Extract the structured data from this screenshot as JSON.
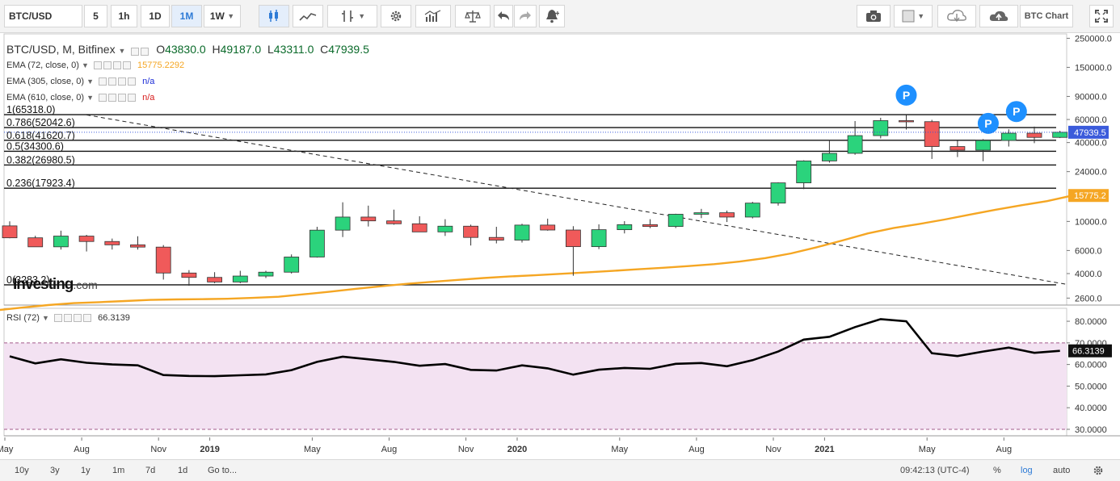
{
  "toolbar": {
    "symbol": "BTC/USD",
    "intervals": [
      "5",
      "1h",
      "1D",
      "1M",
      "1W"
    ],
    "active_interval": "1M",
    "right_label": "BTC Chart",
    "icons": [
      "candles-icon",
      "line-chart-icon",
      "bar-style-icon",
      "chevron-down-icon",
      "gear-icon",
      "indicators-icon",
      "scale-icon",
      "undo-icon",
      "redo-icon",
      "alert-icon",
      "camera-icon",
      "template-icon",
      "cloud-download-icon",
      "cloud-upload-icon",
      "fullscreen-icon"
    ]
  },
  "legend": {
    "title": "BTC/USD, M, Bitfinex",
    "open_label": "O",
    "open": "43830.0",
    "high_label": "H",
    "high": "49187.0",
    "low_label": "L",
    "low": "43311.0",
    "close_label": "C",
    "close": "47939.5",
    "ema72_label": "EMA (72, close, 0)",
    "ema72_value": "15775.2292",
    "ema72_color": "#f5a623",
    "ema305_label": "EMA (305, close, 0)",
    "ema305_value": "n/a",
    "ema305_color": "#1a2bd6",
    "ema610_label": "EMA (610, close, 0)",
    "ema610_value": "n/a",
    "ema610_color": "#d61a1a",
    "rsi_label": "RSI (72)",
    "rsi_value": "66.3139"
  },
  "logo": {
    "brand": "Investing",
    "suffix": ".com"
  },
  "bottom": {
    "ranges": [
      "10y",
      "3y",
      "1y",
      "1m",
      "7d",
      "1d"
    ],
    "goto": "Go to...",
    "time": "09:42:13 (UTC-4)",
    "pct": "%",
    "log": "log",
    "auto": "auto"
  },
  "chart_data": {
    "type": "candlestick",
    "scale": "log",
    "ylim": [
      2300,
      270000
    ],
    "price_ticks": [
      250000,
      150000,
      90000,
      60000,
      40000,
      24000,
      10000,
      6000,
      4000,
      2600
    ],
    "price_tick_labels": [
      "250000.0",
      "150000.0",
      "90000.0",
      "60000.0",
      "40000.0",
      "24000.0",
      "10000.0",
      "6000.0",
      "4000.0",
      "2600.0"
    ],
    "x_labels": [
      "May",
      "Aug",
      "Nov",
      "2019",
      "May",
      "Aug",
      "Nov",
      "2020",
      "May",
      "Aug",
      "Nov",
      "2021",
      "May",
      "Aug"
    ],
    "x_label_month_index": [
      0,
      3,
      6,
      8,
      12,
      15,
      18,
      20,
      24,
      27,
      30,
      32,
      36,
      39
    ],
    "candles": [
      {
        "o": 9250,
        "h": 10020,
        "l": 7440,
        "c": 7500
      },
      {
        "o": 7500,
        "h": 7770,
        "l": 6450,
        "c": 6400
      },
      {
        "o": 6400,
        "h": 8500,
        "l": 6100,
        "c": 7730
      },
      {
        "o": 7730,
        "h": 7900,
        "l": 5900,
        "c": 7030
      },
      {
        "o": 7030,
        "h": 7400,
        "l": 6100,
        "c": 6630
      },
      {
        "o": 6630,
        "h": 7700,
        "l": 6100,
        "c": 6370
      },
      {
        "o": 6370,
        "h": 6600,
        "l": 3600,
        "c": 4040
      },
      {
        "o": 4040,
        "h": 4250,
        "l": 3230,
        "c": 3740
      },
      {
        "o": 3740,
        "h": 4100,
        "l": 3380,
        "c": 3450
      },
      {
        "o": 3450,
        "h": 4200,
        "l": 3380,
        "c": 3830
      },
      {
        "o": 3830,
        "h": 4200,
        "l": 3700,
        "c": 4100
      },
      {
        "o": 4100,
        "h": 5600,
        "l": 4000,
        "c": 5350
      },
      {
        "o": 5350,
        "h": 9100,
        "l": 5300,
        "c": 8580
      },
      {
        "o": 8580,
        "h": 14000,
        "l": 7600,
        "c": 10800
      },
      {
        "o": 10800,
        "h": 13200,
        "l": 9150,
        "c": 10100
      },
      {
        "o": 10100,
        "h": 12300,
        "l": 9450,
        "c": 9600
      },
      {
        "o": 9600,
        "h": 10950,
        "l": 8300,
        "c": 8320
      },
      {
        "o": 8320,
        "h": 10400,
        "l": 7750,
        "c": 9200
      },
      {
        "o": 9200,
        "h": 9450,
        "l": 6550,
        "c": 7550
      },
      {
        "o": 7550,
        "h": 9100,
        "l": 6800,
        "c": 7200
      },
      {
        "o": 7200,
        "h": 9600,
        "l": 6900,
        "c": 9380
      },
      {
        "o": 9380,
        "h": 10500,
        "l": 8500,
        "c": 8600
      },
      {
        "o": 8600,
        "h": 9200,
        "l": 3850,
        "c": 6420
      },
      {
        "o": 6420,
        "h": 9500,
        "l": 6150,
        "c": 8650
      },
      {
        "o": 8650,
        "h": 10050,
        "l": 8100,
        "c": 9450
      },
      {
        "o": 9450,
        "h": 10400,
        "l": 8900,
        "c": 9150
      },
      {
        "o": 9150,
        "h": 11450,
        "l": 8900,
        "c": 11350
      },
      {
        "o": 11350,
        "h": 12470,
        "l": 10600,
        "c": 11650
      },
      {
        "o": 11650,
        "h": 12100,
        "l": 9900,
        "c": 10800
      },
      {
        "o": 10800,
        "h": 14100,
        "l": 10550,
        "c": 13800
      },
      {
        "o": 13800,
        "h": 19850,
        "l": 13200,
        "c": 19700
      },
      {
        "o": 19700,
        "h": 29300,
        "l": 17650,
        "c": 28950
      },
      {
        "o": 28950,
        "h": 41950,
        "l": 28100,
        "c": 33100
      },
      {
        "o": 33100,
        "h": 58350,
        "l": 32300,
        "c": 45200
      },
      {
        "o": 45200,
        "h": 61800,
        "l": 43000,
        "c": 58800
      },
      {
        "o": 58800,
        "h": 64900,
        "l": 50300,
        "c": 57750
      },
      {
        "o": 57750,
        "h": 59600,
        "l": 30000,
        "c": 37300
      },
      {
        "o": 37300,
        "h": 41300,
        "l": 31000,
        "c": 35000
      },
      {
        "o": 35000,
        "h": 42500,
        "l": 28800,
        "c": 41500
      },
      {
        "o": 41500,
        "h": 50500,
        "l": 37300,
        "c": 47150
      },
      {
        "o": 47150,
        "h": 52950,
        "l": 39600,
        "c": 43800
      },
      {
        "o": 43800,
        "h": 49200,
        "l": 43300,
        "c": 47939.5
      }
    ],
    "ema72": [
      2000,
      2100,
      2200,
      2300,
      2380,
      2420,
      2470,
      2520,
      2540,
      2550,
      2570,
      2610,
      2660,
      2780,
      2910,
      3060,
      3200,
      3340,
      3460,
      3580,
      3700,
      3800,
      3880,
      3980,
      4080,
      4190,
      4310,
      4430,
      4560,
      4720,
      4940,
      5250,
      5700,
      6350,
      7150,
      8100,
      8900,
      9550,
      10350,
      11300,
      12300,
      13300,
      14300,
      15775.2292
    ],
    "ema72_x_start": -1.5,
    "fib_levels": [
      {
        "label": "1(65318.0)",
        "value": 65318
      },
      {
        "label": "0.786(52042.6)",
        "value": 52042.6
      },
      {
        "label": "0.618(41620.7)",
        "value": 41620.7
      },
      {
        "label": "0.5(34300.6)",
        "value": 34300.6
      },
      {
        "label": "0.382(26980.5)",
        "value": 26980.5
      },
      {
        "label": "0.236(17923.4)",
        "value": 17923.4
      },
      {
        "label": "0(3283.2)",
        "value": 3283.2
      }
    ],
    "trendline": {
      "from_month": 3.0,
      "from_value": 65000,
      "to_month": 41.3,
      "to_value": 3300
    },
    "markers": [
      {
        "label": "P",
        "month": 35,
        "value": 92000
      },
      {
        "label": "P",
        "month": 38.2,
        "value": 56000
      },
      {
        "label": "P",
        "month": 39.3,
        "value": 69000
      }
    ],
    "last_price_label": "47939.5",
    "ema_last_label": "15775.2",
    "rsi": {
      "name": "RSI (72)",
      "ylim": [
        27,
        86
      ],
      "levels": [
        70,
        30
      ],
      "ticks": [
        80,
        70,
        60,
        50,
        40,
        30
      ],
      "tick_labels": [
        "80.0000",
        "70.0000",
        "60.0000",
        "50.0000",
        "40.0000",
        "30.0000"
      ],
      "values": [
        63.8,
        60.5,
        62.4,
        60.8,
        60.0,
        59.6,
        55.1,
        54.7,
        54.6,
        55.0,
        55.4,
        57.4,
        61.2,
        63.6,
        62.4,
        61.2,
        59.4,
        60.2,
        57.5,
        57.2,
        59.6,
        58.2,
        55.3,
        57.6,
        58.4,
        58.0,
        60.3,
        60.7,
        59.2,
        62.0,
        66.0,
        71.5,
        72.8,
        77.3,
        81.0,
        80.0,
        65.2,
        63.9,
        66.0,
        67.8,
        65.4,
        66.3139
      ],
      "last_label": "66.3139"
    }
  }
}
